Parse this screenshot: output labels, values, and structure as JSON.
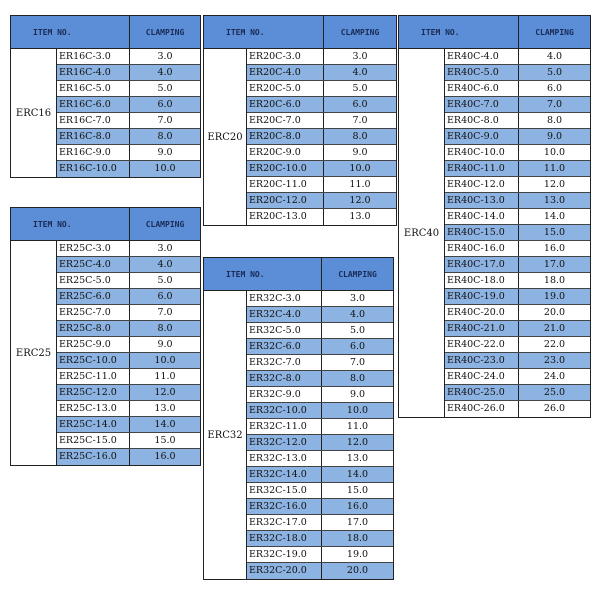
{
  "header": {
    "item_no": "ITEM NO.",
    "clamping": "CLAMPING"
  },
  "colors": {
    "header": "#5b8ed6",
    "alt_row": "#8db3e2",
    "header_text": "#1a2a55"
  },
  "tables": [
    {
      "group": "ERC16",
      "rows": [
        {
          "item": "ER16C-3.0",
          "clamping": "3.0"
        },
        {
          "item": "ER16C-4.0",
          "clamping": "4.0"
        },
        {
          "item": "ER16C-5.0",
          "clamping": "5.0"
        },
        {
          "item": "ER16C-6.0",
          "clamping": "6.0"
        },
        {
          "item": "ER16C-7.0",
          "clamping": "7.0"
        },
        {
          "item": "ER16C-8.0",
          "clamping": "8.0"
        },
        {
          "item": "ER16C-9.0",
          "clamping": "9.0"
        },
        {
          "item": "ER16C-10.0",
          "clamping": "10.0"
        }
      ]
    },
    {
      "group": "ERC25",
      "rows": [
        {
          "item": "ER25C-3.0",
          "clamping": "3.0"
        },
        {
          "item": "ER25C-4.0",
          "clamping": "4.0"
        },
        {
          "item": "ER25C-5.0",
          "clamping": "5.0"
        },
        {
          "item": "ER25C-6.0",
          "clamping": "6.0"
        },
        {
          "item": "ER25C-7.0",
          "clamping": "7.0"
        },
        {
          "item": "ER25C-8.0",
          "clamping": "8.0"
        },
        {
          "item": "ER25C-9.0",
          "clamping": "9.0"
        },
        {
          "item": "ER25C-10.0",
          "clamping": "10.0"
        },
        {
          "item": "ER25C-11.0",
          "clamping": "11.0"
        },
        {
          "item": "ER25C-12.0",
          "clamping": "12.0"
        },
        {
          "item": "ER25C-13.0",
          "clamping": "13.0"
        },
        {
          "item": "ER25C-14.0",
          "clamping": "14.0"
        },
        {
          "item": "ER25C-15.0",
          "clamping": "15.0"
        },
        {
          "item": "ER25C-16.0",
          "clamping": "16.0"
        }
      ]
    },
    {
      "group": "ERC20",
      "rows": [
        {
          "item": "ER20C-3.0",
          "clamping": "3.0"
        },
        {
          "item": "ER20C-4.0",
          "clamping": "4.0"
        },
        {
          "item": "ER20C-5.0",
          "clamping": "5.0"
        },
        {
          "item": "ER20C-6.0",
          "clamping": "6.0"
        },
        {
          "item": "ER20C-7.0",
          "clamping": "7.0"
        },
        {
          "item": "ER20C-8.0",
          "clamping": "8.0"
        },
        {
          "item": "ER20C-9.0",
          "clamping": "9.0"
        },
        {
          "item": "ER20C-10.0",
          "clamping": "10.0"
        },
        {
          "item": "ER20C-11.0",
          "clamping": "11.0"
        },
        {
          "item": "ER20C-12.0",
          "clamping": "12.0"
        },
        {
          "item": "ER20C-13.0",
          "clamping": "13.0"
        }
      ]
    },
    {
      "group": "ERC32",
      "rows": [
        {
          "item": "ER32C-3.0",
          "clamping": "3.0"
        },
        {
          "item": "ER32C-4.0",
          "clamping": "4.0"
        },
        {
          "item": "ER32C-5.0",
          "clamping": "5.0"
        },
        {
          "item": "ER32C-6.0",
          "clamping": "6.0"
        },
        {
          "item": "ER32C-7.0",
          "clamping": "7.0"
        },
        {
          "item": "ER32C-8.0",
          "clamping": "8.0"
        },
        {
          "item": "ER32C-9.0",
          "clamping": "9.0"
        },
        {
          "item": "ER32C-10.0",
          "clamping": "10.0"
        },
        {
          "item": "ER32C-11.0",
          "clamping": "11.0"
        },
        {
          "item": "ER32C-12.0",
          "clamping": "12.0"
        },
        {
          "item": "ER32C-13.0",
          "clamping": "13.0"
        },
        {
          "item": "ER32C-14.0",
          "clamping": "14.0"
        },
        {
          "item": "ER32C-15.0",
          "clamping": "15.0"
        },
        {
          "item": "ER32C-16.0",
          "clamping": "16.0"
        },
        {
          "item": "ER32C-17.0",
          "clamping": "17.0"
        },
        {
          "item": "ER32C-18.0",
          "clamping": "18.0"
        },
        {
          "item": "ER32C-19.0",
          "clamping": "19.0"
        },
        {
          "item": "ER32C-20.0",
          "clamping": "20.0"
        }
      ]
    },
    {
      "group": "ERC40",
      "rows": [
        {
          "item": "ER40C-4.0",
          "clamping": "4.0"
        },
        {
          "item": "ER40C-5.0",
          "clamping": "5.0"
        },
        {
          "item": "ER40C-6.0",
          "clamping": "6.0"
        },
        {
          "item": "ER40C-7.0",
          "clamping": "7.0"
        },
        {
          "item": "ER40C-8.0",
          "clamping": "8.0"
        },
        {
          "item": "ER40C-9.0",
          "clamping": "9.0"
        },
        {
          "item": "ER40C-10.0",
          "clamping": "10.0"
        },
        {
          "item": "ER40C-11.0",
          "clamping": "11.0"
        },
        {
          "item": "ER40C-12.0",
          "clamping": "12.0"
        },
        {
          "item": "ER40C-13.0",
          "clamping": "13.0"
        },
        {
          "item": "ER40C-14.0",
          "clamping": "14.0"
        },
        {
          "item": "ER40C-15.0",
          "clamping": "15.0"
        },
        {
          "item": "ER40C-16.0",
          "clamping": "16.0"
        },
        {
          "item": "ER40C-17.0",
          "clamping": "17.0"
        },
        {
          "item": "ER40C-18.0",
          "clamping": "18.0"
        },
        {
          "item": "ER40C-19.0",
          "clamping": "19.0"
        },
        {
          "item": "ER40C-20.0",
          "clamping": "20.0"
        },
        {
          "item": "ER40C-21.0",
          "clamping": "21.0"
        },
        {
          "item": "ER40C-22.0",
          "clamping": "22.0"
        },
        {
          "item": "ER40C-23.0",
          "clamping": "23.0"
        },
        {
          "item": "ER40C-24.0",
          "clamping": "24.0"
        },
        {
          "item": "ER40C-25.0",
          "clamping": "25.0"
        },
        {
          "item": "ER40C-26.0",
          "clamping": "26.0"
        }
      ]
    }
  ]
}
